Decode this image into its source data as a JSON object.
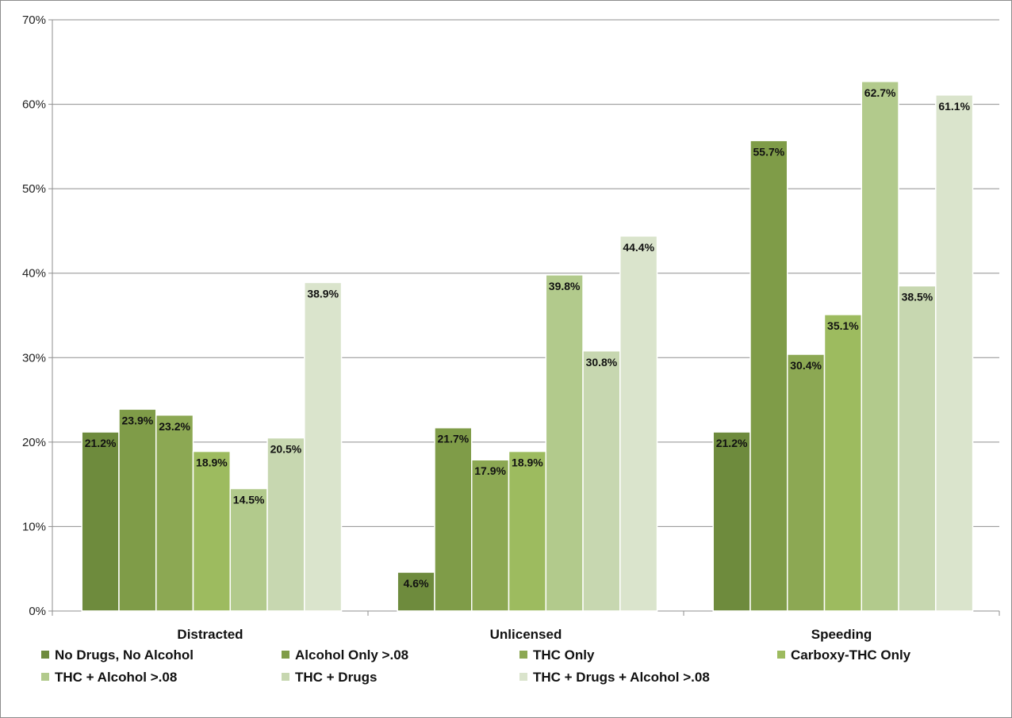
{
  "chart_data": {
    "type": "bar",
    "categories": [
      "Distracted",
      "Unlicensed",
      "Speeding"
    ],
    "ylim": [
      0,
      70
    ],
    "y_ticks": [
      0,
      10,
      20,
      30,
      40,
      50,
      60,
      70
    ],
    "y_tick_labels": [
      "0%",
      "10%",
      "20%",
      "30%",
      "40%",
      "50%",
      "60%",
      "70%"
    ],
    "grid": true,
    "legend_position": "bottom",
    "series": [
      {
        "name": "No Drugs, No Alcohol",
        "color": "#6E8B3D",
        "values": [
          21.2,
          4.6,
          21.2
        ],
        "labels": [
          "21.2%",
          "4.6%",
          "21.2%"
        ]
      },
      {
        "name": "Alcohol Only >.08",
        "color": "#7F9C48",
        "values": [
          23.9,
          21.7,
          55.7
        ],
        "labels": [
          "23.9%",
          "21.7%",
          "55.7%"
        ]
      },
      {
        "name": "THC Only",
        "color": "#8CA853",
        "values": [
          23.2,
          17.9,
          30.4
        ],
        "labels": [
          "23.2%",
          "17.9%",
          "30.4%"
        ]
      },
      {
        "name": "Carboxy-THC Only",
        "color": "#9DBB5F",
        "values": [
          18.9,
          18.9,
          35.1
        ],
        "labels": [
          "18.9%",
          "18.9%",
          "35.1%"
        ]
      },
      {
        "name": "THC + Alcohol >.08",
        "color": "#B2CA8C",
        "values": [
          14.5,
          39.8,
          62.7
        ],
        "labels": [
          "14.5%",
          "39.8%",
          "62.7%"
        ]
      },
      {
        "name": "THC + Drugs",
        "color": "#C7D7B0",
        "values": [
          20.5,
          30.8,
          38.5
        ],
        "labels": [
          "20.5%",
          "30.8%",
          "38.5%"
        ]
      },
      {
        "name": "THC + Drugs + Alcohol >.08",
        "color": "#DAE4CC",
        "values": [
          38.9,
          44.4,
          61.1
        ],
        "labels": [
          "38.9%",
          "44.4%",
          "61.1%"
        ]
      }
    ]
  }
}
